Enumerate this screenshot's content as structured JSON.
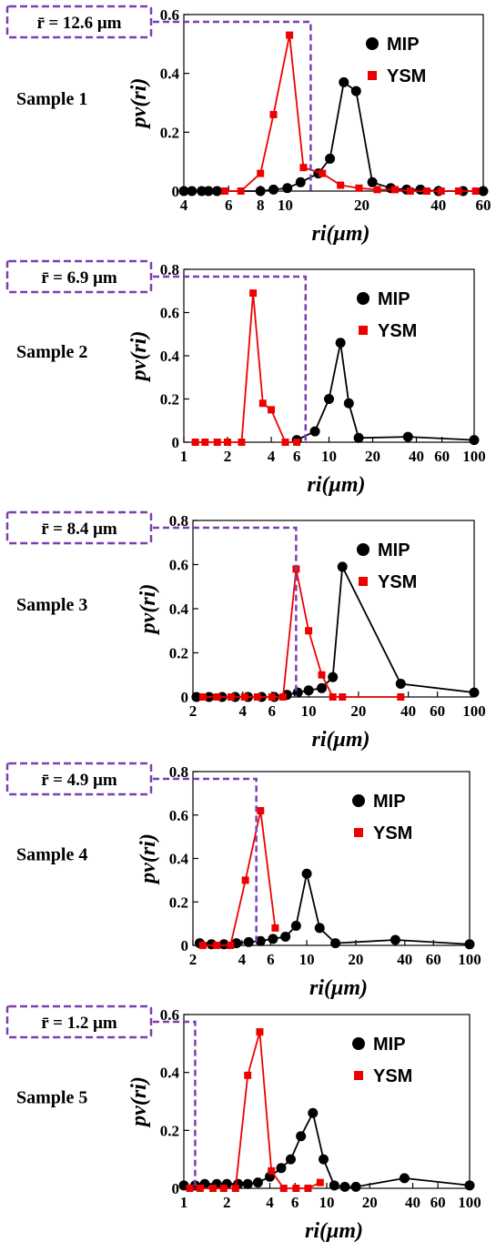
{
  "colors": {
    "mip": "#000000",
    "ysm": "#ee0000",
    "mean_box": "#7a3fb0",
    "axis": "#000000"
  },
  "chart_data": [
    {
      "type": "line",
      "sample_label": "Sample 1",
      "mean_label": "r̄ = 12.6 μm",
      "mean_value": 12.6,
      "x_scale": "log",
      "xlim": [
        4,
        60
      ],
      "ylim": [
        0,
        0.6
      ],
      "xticks": [
        4,
        6,
        8,
        10,
        20,
        40,
        60
      ],
      "xtick_labels": [
        "4",
        "6",
        "8",
        "10",
        "20",
        "40",
        "60"
      ],
      "yticks": [
        0,
        0.2,
        0.4,
        0.6
      ],
      "ytick_labels": [
        "0",
        "0.2",
        "0.4",
        "0.6"
      ],
      "xlabel": "ri(μm)",
      "ylabel": "pv(ri)",
      "legend": "top-right",
      "series": [
        {
          "name": "MIP",
          "marker": "circle",
          "x": [
            4,
            4.3,
            4.7,
            5,
            5.4,
            8,
            9,
            10.2,
            11.5,
            13.5,
            15,
            17,
            19,
            22,
            26,
            30,
            34,
            40,
            50,
            60
          ],
          "y": [
            0,
            0,
            0,
            0,
            0,
            0,
            0.005,
            0.01,
            0.03,
            0.06,
            0.11,
            0.37,
            0.34,
            0.03,
            0.01,
            0.005,
            0.005,
            0,
            0,
            0
          ]
        },
        {
          "name": "YSM",
          "marker": "square",
          "x": [
            5.8,
            6.7,
            8,
            9,
            10.4,
            11.8,
            14,
            16.5,
            19.5,
            23,
            27,
            31,
            36,
            41,
            48,
            56
          ],
          "y": [
            0,
            0,
            0.06,
            0.26,
            0.53,
            0.08,
            0.06,
            0.02,
            0.01,
            0.005,
            0.005,
            0,
            0,
            0,
            0,
            0
          ]
        }
      ]
    },
    {
      "type": "line",
      "sample_label": "Sample 2",
      "mean_label": "r̄ = 6.9 μm",
      "mean_value": 6.9,
      "x_scale": "log",
      "xlim": [
        1,
        100
      ],
      "ylim": [
        0,
        0.8
      ],
      "xticks": [
        1,
        2,
        4,
        6,
        10,
        20,
        40,
        60,
        100
      ],
      "xtick_labels": [
        "1",
        "2",
        "4",
        "6",
        "10",
        "20",
        "40",
        "60",
        "100"
      ],
      "yticks": [
        0,
        0.2,
        0.4,
        0.6,
        0.8
      ],
      "ytick_labels": [
        "0",
        "0.2",
        "0.4",
        "0.6",
        "0.8"
      ],
      "xlabel": "ri(μm)",
      "ylabel": "pv(ri)",
      "legend": "top-right",
      "series": [
        {
          "name": "MIP",
          "marker": "circle",
          "x": [
            6,
            8,
            10,
            12,
            13.7,
            16,
            35,
            100
          ],
          "y": [
            0.01,
            0.05,
            0.2,
            0.46,
            0.18,
            0.02,
            0.025,
            0.01
          ]
        },
        {
          "name": "YSM",
          "marker": "square",
          "x": [
            1.2,
            1.4,
            1.7,
            2,
            2.5,
            3,
            3.5,
            4,
            5,
            6
          ],
          "y": [
            0,
            0,
            0,
            0,
            0,
            0.69,
            0.18,
            0.15,
            0,
            0
          ]
        }
      ]
    },
    {
      "type": "line",
      "sample_label": "Sample 3",
      "mean_label": "r̄ = 8.4 μm",
      "mean_value": 8.4,
      "x_scale": "log",
      "xlim": [
        2,
        100
      ],
      "ylim": [
        0,
        0.8
      ],
      "xticks": [
        2,
        4,
        6,
        10,
        20,
        40,
        60,
        100
      ],
      "xtick_labels": [
        "2",
        "4",
        "6",
        "10",
        "20",
        "40",
        "60",
        "100"
      ],
      "yticks": [
        0,
        0.2,
        0.4,
        0.6,
        0.8
      ],
      "ytick_labels": [
        "0",
        "0.2",
        "0.4",
        "0.6",
        "0.8"
      ],
      "xlabel": "ri(μm)",
      "ylabel": "pv(ri)",
      "legend": "top-right",
      "series": [
        {
          "name": "MIP",
          "marker": "circle",
          "x": [
            2.1,
            2.5,
            3,
            3.6,
            4.3,
            5.2,
            6.2,
            7.4,
            8.6,
            10,
            12,
            14,
            16,
            36,
            100
          ],
          "y": [
            0,
            0,
            0,
            0,
            0,
            0,
            0,
            0.01,
            0.02,
            0.03,
            0.04,
            0.09,
            0.59,
            0.06,
            0.02
          ]
        },
        {
          "name": "YSM",
          "marker": "square",
          "x": [
            2.3,
            2.8,
            3.4,
            4.1,
            4.9,
            6,
            7,
            8.4,
            10,
            12,
            14,
            16,
            36
          ],
          "y": [
            0,
            0,
            0,
            0,
            0,
            0,
            0,
            0.58,
            0.3,
            0.1,
            0,
            0,
            0
          ]
        }
      ]
    },
    {
      "type": "line",
      "sample_label": "Sample 4",
      "mean_label": "r̄ = 4.9 μm",
      "mean_value": 4.9,
      "x_scale": "log",
      "xlim": [
        2,
        100
      ],
      "ylim": [
        0,
        0.8
      ],
      "xticks": [
        2,
        4,
        6,
        10,
        20,
        40,
        60,
        100
      ],
      "xtick_labels": [
        "2",
        "4",
        "6",
        "10",
        "20",
        "40",
        "60",
        "100"
      ],
      "yticks": [
        0,
        0.2,
        0.4,
        0.6,
        0.8
      ],
      "ytick_labels": [
        "0",
        "0.2",
        "0.4",
        "0.6",
        "0.8"
      ],
      "xlabel": "ri(μm)",
      "ylabel": "pv(ri)",
      "legend": "top-right",
      "series": [
        {
          "name": "MIP",
          "marker": "circle",
          "x": [
            2.2,
            2.6,
            3.1,
            3.7,
            4.4,
            5.2,
            6.2,
            7.4,
            8.6,
            10,
            12,
            15,
            35,
            100
          ],
          "y": [
            0.01,
            0.005,
            0.005,
            0.01,
            0.015,
            0.02,
            0.03,
            0.04,
            0.09,
            0.33,
            0.08,
            0.01,
            0.025,
            0.005
          ]
        },
        {
          "name": "YSM",
          "marker": "square",
          "x": [
            2.3,
            2.8,
            3.4,
            4.2,
            5.2,
            6.4
          ],
          "y": [
            0,
            0,
            0,
            0.3,
            0.62,
            0.08
          ]
        }
      ]
    },
    {
      "type": "line",
      "sample_label": "Sample 5",
      "mean_label": "r̄ = 1.2 μm",
      "mean_value": 1.2,
      "x_scale": "log",
      "xlim": [
        1,
        100
      ],
      "ylim": [
        0,
        0.6
      ],
      "xticks": [
        1,
        2,
        4,
        6,
        10,
        20,
        40,
        60,
        100
      ],
      "xtick_labels": [
        "1",
        "2",
        "4",
        "6",
        "10",
        "20",
        "40",
        "60",
        "100"
      ],
      "yticks": [
        0,
        0.2,
        0.4,
        0.6
      ],
      "ytick_labels": [
        "0",
        "0.2",
        "0.4",
        "0.6"
      ],
      "xlabel": "ri(μm)",
      "ylabel": "pv(ri)",
      "legend": "top-right",
      "series": [
        {
          "name": "MIP",
          "marker": "circle",
          "x": [
            1,
            1.2,
            1.4,
            1.7,
            2,
            2.4,
            2.8,
            3.3,
            4,
            4.8,
            5.6,
            6.6,
            8,
            9.5,
            11.3,
            13.4,
            16,
            35,
            100
          ],
          "y": [
            0.01,
            0.01,
            0.015,
            0.015,
            0.015,
            0.015,
            0.015,
            0.02,
            0.04,
            0.07,
            0.1,
            0.18,
            0.26,
            0.1,
            0.01,
            0.005,
            0.005,
            0.035,
            0.01
          ]
        },
        {
          "name": "YSM",
          "marker": "square",
          "x": [
            1.1,
            1.3,
            1.6,
            1.9,
            2.3,
            2.8,
            3.4,
            4.1,
            5,
            6.1,
            7.4,
            9
          ],
          "y": [
            0,
            0,
            0,
            0,
            0,
            0.39,
            0.54,
            0.06,
            0,
            0,
            0,
            0.02
          ]
        }
      ]
    }
  ]
}
